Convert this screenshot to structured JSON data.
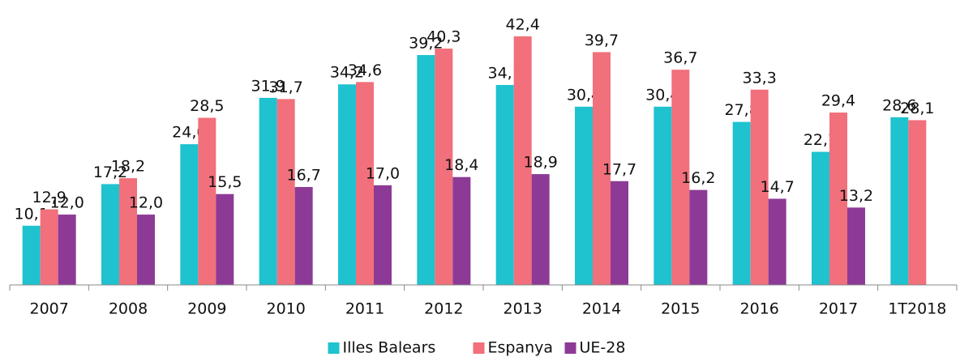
{
  "chart_data": {
    "type": "bar",
    "categories": [
      "2007",
      "2008",
      "2009",
      "2010",
      "2011",
      "2012",
      "2013",
      "2014",
      "2015",
      "2016",
      "2017",
      "1T2018"
    ],
    "series": [
      {
        "name": "Illes Balears",
        "color": "#1fc2cf",
        "values": [
          10.1,
          17.2,
          24.0,
          31.9,
          34.2,
          39.2,
          34.1,
          30.4,
          30.4,
          27.8,
          22.7,
          28.6
        ],
        "value_labels": [
          "10,1",
          "17,2",
          "24,0",
          "31,9",
          "34,2",
          "39,2",
          "34,1",
          "30,4",
          "30,4",
          "27,8",
          "22,7",
          "28,6"
        ]
      },
      {
        "name": "Espanya",
        "color": "#f1707b",
        "values": [
          12.9,
          18.2,
          28.5,
          31.7,
          34.6,
          40.3,
          42.4,
          39.7,
          36.7,
          33.3,
          29.4,
          28.1
        ],
        "value_labels": [
          "12,9",
          "18,2",
          "28,5",
          "31,7",
          "34,6",
          "40,3",
          "42,4",
          "39,7",
          "36,7",
          "33,3",
          "29,4",
          "28,1"
        ]
      },
      {
        "name": "UE-28",
        "color": "#8d3a96",
        "values": [
          12.0,
          12.0,
          15.5,
          16.7,
          17.0,
          18.4,
          18.9,
          17.7,
          16.2,
          14.7,
          13.2,
          null
        ],
        "value_labels": [
          "12,0",
          "12,0",
          "15,5",
          "16,7",
          "17,0",
          "18,4",
          "18,9",
          "17,7",
          "16,2",
          "14,7",
          "13,2",
          null
        ]
      }
    ],
    "ylim": [
      0,
      45
    ],
    "legend": "bottom"
  }
}
